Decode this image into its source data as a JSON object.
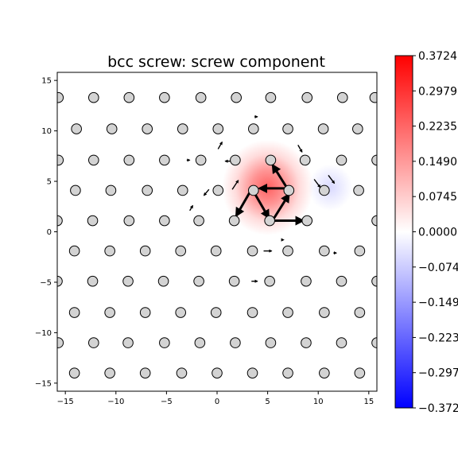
{
  "chart_data": {
    "type": "heatmap",
    "title": "bcc screw: screw component",
    "xlabel": "",
    "ylabel": "",
    "xlim": [
      -15.8,
      15.8
    ],
    "ylim": [
      -15.8,
      15.8
    ],
    "xticks": [
      -15,
      -10,
      -5,
      0,
      5,
      10,
      15
    ],
    "yticks": [
      -15,
      -10,
      -5,
      0,
      5,
      10,
      15
    ],
    "tick_labels": [
      "−15",
      "−10",
      "−5",
      "0",
      "5",
      "10",
      "15"
    ],
    "grid": false,
    "colormap": "bwr",
    "colorbar": {
      "min": -0.3724,
      "max": 0.3724,
      "tick_values": [
        0.3724,
        0.2979,
        0.2235,
        0.149,
        0.0745,
        0.0,
        -0.0745,
        -0.149,
        -0.2235,
        -0.2979,
        -0.3724
      ],
      "tick_labels": [
        "0.3724",
        "0.2979",
        "0.2235",
        "0.1490",
        "0.0745",
        "0.0000",
        "−0.0745",
        "−0.1490",
        "−0.2235",
        "−0.2979",
        "−0.3724"
      ]
    },
    "heat_peaks": [
      {
        "x": 5.0,
        "y": 4.4,
        "value": 0.3724,
        "spread": 4.5
      },
      {
        "x": 11.2,
        "y": 4.4,
        "value": -0.05,
        "spread": 2.2
      }
    ],
    "atom_rows": [
      {
        "y": 13.3,
        "x": [
          -15.7,
          -12.2,
          -8.7,
          -5.2,
          -1.6,
          1.9,
          5.3,
          8.9,
          12.4,
          15.6
        ]
      },
      {
        "y": 10.2,
        "x": [
          -13.9,
          -10.4,
          -6.9,
          -3.4,
          0.1,
          3.6,
          7.0,
          10.5,
          13.9
        ]
      },
      {
        "y": 7.1,
        "x": [
          -15.7,
          -12.2,
          -8.7,
          -5.2,
          -1.6,
          1.8,
          5.3,
          8.7,
          12.3,
          15.8
        ]
      },
      {
        "y": 4.1,
        "x": [
          -14.0,
          -10.5,
          -6.9,
          -3.4,
          0.1,
          3.6,
          7.1,
          10.6,
          14.0
        ]
      },
      {
        "y": 1.1,
        "x": [
          -15.8,
          -12.3,
          -8.7,
          -5.2,
          -1.8,
          1.7,
          5.2,
          8.9,
          15.8
        ]
      },
      {
        "y": -1.9,
        "x": [
          -14.1,
          -10.6,
          -7.1,
          -3.6,
          -0.1,
          3.5,
          7.0,
          10.6,
          14.1
        ]
      },
      {
        "y": -4.9,
        "x": [
          -15.8,
          -12.3,
          -8.8,
          -5.3,
          -1.8,
          1.7,
          5.2,
          8.8,
          12.3,
          15.8
        ]
      },
      {
        "y": -8.0,
        "x": [
          -14.1,
          -10.6,
          -7.1,
          -3.6,
          -0.1,
          3.5,
          7.0,
          10.6,
          14.1
        ]
      },
      {
        "y": -11.0,
        "x": [
          -15.7,
          -12.2,
          -8.8,
          -5.2,
          -1.7,
          1.8,
          5.3,
          8.8,
          12.3,
          15.8
        ]
      },
      {
        "y": -14.0,
        "x": [
          -14.1,
          -10.6,
          -7.1,
          -3.5,
          0.0,
          3.5,
          7.0,
          10.6,
          14.1
        ]
      }
    ],
    "arrows_large": [
      {
        "x": 5.2,
        "y": 1.1,
        "dx": 3.3,
        "dy": 0.0
      },
      {
        "x": 7.0,
        "y": 4.3,
        "dx": -2.8,
        "dy": 0.0
      },
      {
        "x": 5.6,
        "y": 1.3,
        "dx": 1.5,
        "dy": 2.4
      },
      {
        "x": 7.0,
        "y": 4.2,
        "dx": -1.5,
        "dy": 2.4
      },
      {
        "x": 3.4,
        "y": 4.2,
        "dx": -1.5,
        "dy": -2.6
      },
      {
        "x": 3.6,
        "y": 4.0,
        "dx": 1.5,
        "dy": -2.6
      }
    ],
    "arrows_small": [
      {
        "x": 1.6,
        "y": 7.0,
        "dx": -0.8,
        "dy": 0.0
      },
      {
        "x": 8.5,
        "y": 7.0,
        "dx": 0.7,
        "dy": 0.0
      },
      {
        "x": 1.5,
        "y": 4.2,
        "dx": 0.6,
        "dy": 0.9
      },
      {
        "x": 9.6,
        "y": 5.2,
        "dx": 0.6,
        "dy": -0.8
      },
      {
        "x": 11.0,
        "y": 5.6,
        "dx": 0.6,
        "dy": -0.8
      },
      {
        "x": 0.1,
        "y": 8.2,
        "dx": 0.4,
        "dy": 0.7
      },
      {
        "x": 8.0,
        "y": 8.6,
        "dx": 0.4,
        "dy": -0.7
      },
      {
        "x": 6.6,
        "y": -0.8,
        "dx": 0.0,
        "dy": 0.0
      },
      {
        "x": 4.6,
        "y": -1.9,
        "dx": 0.8,
        "dy": 0.0
      },
      {
        "x": 3.4,
        "y": -4.9,
        "dx": 0.6,
        "dy": 0.0
      },
      {
        "x": -0.8,
        "y": 4.2,
        "dx": -0.5,
        "dy": -0.6
      },
      {
        "x": -2.7,
        "y": 2.1,
        "dx": 0.3,
        "dy": 0.5
      },
      {
        "x": 3.7,
        "y": 11.4,
        "dx": 0.3,
        "dy": 0.0
      },
      {
        "x": -3.0,
        "y": 7.1,
        "dx": 0.3,
        "dy": 0.0
      },
      {
        "x": 11.5,
        "y": -2.1,
        "dx": 0.3,
        "dy": 0.0
      }
    ]
  }
}
